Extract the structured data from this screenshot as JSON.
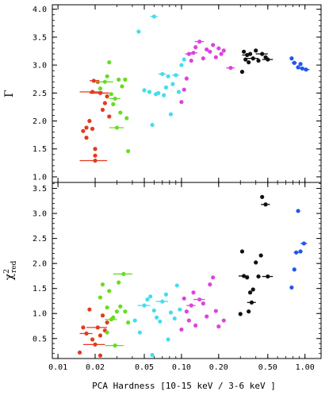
{
  "chart_data": [
    {
      "type": "scatter",
      "panel": "top",
      "ylabel": "Γ",
      "xlabel": "",
      "xscale": "log",
      "xlim": [
        0.009,
        1.35
      ],
      "ylim": [
        0.9,
        4.08
      ],
      "yticks": [
        1.0,
        1.5,
        2.0,
        2.5,
        3.0,
        3.5,
        4.0
      ],
      "ytick_labels": [
        "1.0",
        "1.5",
        "2.0",
        "2.5",
        "3.0",
        "3.5",
        "4.0"
      ],
      "grid": false,
      "series": [
        {
          "color": "#e03c1e",
          "points": [
            {
              "x": 0.016,
              "y": 1.82
            },
            {
              "x": 0.017,
              "y": 1.88
            },
            {
              "x": 0.017,
              "y": 1.7
            },
            {
              "x": 0.018,
              "y": 2.0
            },
            {
              "x": 0.019,
              "y": 1.86
            },
            {
              "x": 0.0195,
              "y": 2.72,
              "xerr": 0.0015
            },
            {
              "x": 0.019,
              "y": 2.52,
              "xerr": 0.004
            },
            {
              "x": 0.02,
              "y": 1.5
            },
            {
              "x": 0.02,
              "y": 1.38
            },
            {
              "x": 0.02,
              "y": 1.29,
              "xerr": 0.005
            },
            {
              "x": 0.021,
              "y": 2.7
            },
            {
              "x": 0.022,
              "y": 2.5,
              "xerr": 0.004
            },
            {
              "x": 0.023,
              "y": 2.2
            },
            {
              "x": 0.024,
              "y": 2.32
            },
            {
              "x": 0.025,
              "y": 2.44
            },
            {
              "x": 0.026,
              "y": 2.08
            }
          ]
        },
        {
          "color": "#66dd22",
          "points": [
            {
              "x": 0.022,
              "y": 2.58
            },
            {
              "x": 0.024,
              "y": 2.7,
              "xerr": 0.004
            },
            {
              "x": 0.025,
              "y": 2.8
            },
            {
              "x": 0.026,
              "y": 3.05
            },
            {
              "x": 0.027,
              "y": 2.48
            },
            {
              "x": 0.028,
              "y": 2.3
            },
            {
              "x": 0.029,
              "y": 2.4,
              "xerr": 0.003
            },
            {
              "x": 0.03,
              "y": 1.88,
              "xerr": 0.004
            },
            {
              "x": 0.031,
              "y": 2.74
            },
            {
              "x": 0.032,
              "y": 2.15
            },
            {
              "x": 0.033,
              "y": 2.62
            },
            {
              "x": 0.035,
              "y": 2.74
            },
            {
              "x": 0.036,
              "y": 2.05
            },
            {
              "x": 0.037,
              "y": 1.46
            }
          ]
        },
        {
          "color": "#44ddee",
          "points": [
            {
              "x": 0.045,
              "y": 3.6
            },
            {
              "x": 0.05,
              "y": 2.55
            },
            {
              "x": 0.055,
              "y": 2.52
            },
            {
              "x": 0.058,
              "y": 1.93
            },
            {
              "x": 0.06,
              "y": 3.87,
              "xerr": 0.004
            },
            {
              "x": 0.062,
              "y": 2.48
            },
            {
              "x": 0.065,
              "y": 2.5
            },
            {
              "x": 0.07,
              "y": 2.84,
              "xerr": 0.005
            },
            {
              "x": 0.072,
              "y": 2.46
            },
            {
              "x": 0.075,
              "y": 2.6
            },
            {
              "x": 0.078,
              "y": 2.8
            },
            {
              "x": 0.082,
              "y": 2.12
            },
            {
              "x": 0.085,
              "y": 2.66
            },
            {
              "x": 0.09,
              "y": 2.82,
              "xerr": 0.006
            },
            {
              "x": 0.095,
              "y": 2.52
            },
            {
              "x": 0.1,
              "y": 3.0
            },
            {
              "x": 0.105,
              "y": 3.1
            }
          ]
        },
        {
          "color": "#dd44dd",
          "points": [
            {
              "x": 0.1,
              "y": 2.34
            },
            {
              "x": 0.105,
              "y": 2.56
            },
            {
              "x": 0.11,
              "y": 2.76
            },
            {
              "x": 0.115,
              "y": 3.2,
              "xerr": 0.008
            },
            {
              "x": 0.12,
              "y": 3.08
            },
            {
              "x": 0.125,
              "y": 3.22,
              "xerr": 0.01
            },
            {
              "x": 0.13,
              "y": 3.32
            },
            {
              "x": 0.14,
              "y": 3.42,
              "xerr": 0.012
            },
            {
              "x": 0.15,
              "y": 3.12
            },
            {
              "x": 0.16,
              "y": 3.28
            },
            {
              "x": 0.17,
              "y": 3.24
            },
            {
              "x": 0.18,
              "y": 3.36
            },
            {
              "x": 0.19,
              "y": 3.14
            },
            {
              "x": 0.2,
              "y": 3.3
            },
            {
              "x": 0.21,
              "y": 3.2
            },
            {
              "x": 0.22,
              "y": 3.26
            },
            {
              "x": 0.25,
              "y": 2.95,
              "xerr": 0.02
            }
          ]
        },
        {
          "color": "#111111",
          "points": [
            {
              "x": 0.31,
              "y": 2.88
            },
            {
              "x": 0.32,
              "y": 3.24
            },
            {
              "x": 0.33,
              "y": 3.1
            },
            {
              "x": 0.34,
              "y": 3.18,
              "xerr": 0.03
            },
            {
              "x": 0.35,
              "y": 3.05
            },
            {
              "x": 0.36,
              "y": 3.2
            },
            {
              "x": 0.38,
              "y": 3.12,
              "xerr": 0.04
            },
            {
              "x": 0.4,
              "y": 3.26
            },
            {
              "x": 0.42,
              "y": 3.08
            },
            {
              "x": 0.45,
              "y": 3.2,
              "xerr": 0.05
            },
            {
              "x": 0.48,
              "y": 3.14
            },
            {
              "x": 0.5,
              "y": 3.1,
              "xerr": 0.05
            }
          ]
        },
        {
          "color": "#2255ee",
          "points": [
            {
              "x": 0.78,
              "y": 3.12
            },
            {
              "x": 0.82,
              "y": 3.04,
              "xerr": 0.04
            },
            {
              "x": 0.88,
              "y": 2.96
            },
            {
              "x": 0.92,
              "y": 3.02
            },
            {
              "x": 0.95,
              "y": 2.94,
              "xerr": 0.06
            },
            {
              "x": 1.02,
              "y": 2.92,
              "xerr": 0.07
            }
          ]
        }
      ]
    },
    {
      "type": "scatter",
      "panel": "bottom",
      "ylabel": "χ²red",
      "xlabel": "PCA Hardness [10-15 keV / 3-6 keV ]",
      "xscale": "log",
      "xlim": [
        0.009,
        1.35
      ],
      "ylim": [
        0.1,
        3.62
      ],
      "xticks": [
        0.01,
        0.02,
        0.05,
        0.1,
        0.2,
        0.5,
        1.0
      ],
      "xtick_labels": [
        "0.01",
        "0.02",
        "0.05",
        "0.10",
        "0.20",
        "0.50",
        "1.00"
      ],
      "yticks": [
        0.5,
        1.0,
        1.5,
        2.0,
        2.5,
        3.0,
        3.5
      ],
      "ytick_labels": [
        "0.5",
        "1.0",
        "1.5",
        "2.0",
        "2.5",
        "3.0",
        "3.5"
      ],
      "grid": false,
      "series": [
        {
          "color": "#e03c1e",
          "points": [
            {
              "x": 0.015,
              "y": 0.22
            },
            {
              "x": 0.016,
              "y": 0.72
            },
            {
              "x": 0.017,
              "y": 0.6,
              "xerr": 0.002
            },
            {
              "x": 0.018,
              "y": 1.08
            },
            {
              "x": 0.019,
              "y": 0.48
            },
            {
              "x": 0.02,
              "y": 0.38,
              "xerr": 0.004
            },
            {
              "x": 0.021,
              "y": 0.72,
              "xerr": 0.004
            },
            {
              "x": 0.022,
              "y": 0.56
            },
            {
              "x": 0.023,
              "y": 0.96
            },
            {
              "x": 0.024,
              "y": 0.66
            },
            {
              "x": 0.025,
              "y": 0.82
            },
            {
              "x": 0.022,
              "y": 0.16
            }
          ]
        },
        {
          "color": "#66dd22",
          "points": [
            {
              "x": 0.022,
              "y": 1.32
            },
            {
              "x": 0.023,
              "y": 1.58
            },
            {
              "x": 0.025,
              "y": 1.12
            },
            {
              "x": 0.026,
              "y": 1.45
            },
            {
              "x": 0.027,
              "y": 0.88,
              "xerr": 0.003
            },
            {
              "x": 0.028,
              "y": 0.92
            },
            {
              "x": 0.03,
              "y": 1.04
            },
            {
              "x": 0.031,
              "y": 1.62
            },
            {
              "x": 0.032,
              "y": 1.14
            },
            {
              "x": 0.034,
              "y": 1.79,
              "xerr": 0.006
            },
            {
              "x": 0.035,
              "y": 1.04
            },
            {
              "x": 0.037,
              "y": 0.82
            },
            {
              "x": 0.025,
              "y": 0.62
            },
            {
              "x": 0.029,
              "y": 0.36,
              "xerr": 0.005
            }
          ]
        },
        {
          "color": "#44ddee",
          "points": [
            {
              "x": 0.042,
              "y": 0.86
            },
            {
              "x": 0.046,
              "y": 0.62
            },
            {
              "x": 0.05,
              "y": 1.16,
              "xerr": 0.006
            },
            {
              "x": 0.053,
              "y": 1.28
            },
            {
              "x": 0.056,
              "y": 1.34
            },
            {
              "x": 0.058,
              "y": 0.17
            },
            {
              "x": 0.06,
              "y": 1.06
            },
            {
              "x": 0.063,
              "y": 0.92
            },
            {
              "x": 0.067,
              "y": 0.84
            },
            {
              "x": 0.07,
              "y": 1.24,
              "xerr": 0.008
            },
            {
              "x": 0.075,
              "y": 1.38
            },
            {
              "x": 0.078,
              "y": 0.48
            },
            {
              "x": 0.082,
              "y": 1.02
            },
            {
              "x": 0.088,
              "y": 0.9
            },
            {
              "x": 0.092,
              "y": 1.56
            },
            {
              "x": 0.097,
              "y": 1.08
            }
          ]
        },
        {
          "color": "#dd44dd",
          "points": [
            {
              "x": 0.1,
              "y": 0.68
            },
            {
              "x": 0.105,
              "y": 1.3
            },
            {
              "x": 0.11,
              "y": 1.04
            },
            {
              "x": 0.115,
              "y": 0.86
            },
            {
              "x": 0.12,
              "y": 1.16,
              "xerr": 0.01
            },
            {
              "x": 0.125,
              "y": 1.42
            },
            {
              "x": 0.13,
              "y": 0.76
            },
            {
              "x": 0.14,
              "y": 1.28,
              "xerr": 0.015
            },
            {
              "x": 0.15,
              "y": 1.2
            },
            {
              "x": 0.16,
              "y": 0.94
            },
            {
              "x": 0.17,
              "y": 1.58
            },
            {
              "x": 0.18,
              "y": 1.72
            },
            {
              "x": 0.19,
              "y": 1.05
            },
            {
              "x": 0.2,
              "y": 0.74
            },
            {
              "x": 0.22,
              "y": 0.86
            }
          ]
        },
        {
          "color": "#111111",
          "points": [
            {
              "x": 0.3,
              "y": 0.99
            },
            {
              "x": 0.31,
              "y": 2.24
            },
            {
              "x": 0.32,
              "y": 1.75,
              "xerr": 0.03
            },
            {
              "x": 0.34,
              "y": 1.72
            },
            {
              "x": 0.35,
              "y": 1.04
            },
            {
              "x": 0.36,
              "y": 1.42
            },
            {
              "x": 0.37,
              "y": 1.22,
              "xerr": 0.03
            },
            {
              "x": 0.38,
              "y": 1.48
            },
            {
              "x": 0.4,
              "y": 2.02
            },
            {
              "x": 0.42,
              "y": 1.74
            },
            {
              "x": 0.44,
              "y": 2.16
            },
            {
              "x": 0.45,
              "y": 3.33
            },
            {
              "x": 0.48,
              "y": 3.18,
              "xerr": 0.04
            },
            {
              "x": 0.5,
              "y": 1.74,
              "xerr": 0.05
            }
          ]
        },
        {
          "color": "#2255ee",
          "points": [
            {
              "x": 0.78,
              "y": 1.52
            },
            {
              "x": 0.82,
              "y": 1.88
            },
            {
              "x": 0.85,
              "y": 2.22,
              "xerr": 0.04
            },
            {
              "x": 0.88,
              "y": 3.05
            },
            {
              "x": 0.92,
              "y": 2.24
            },
            {
              "x": 0.98,
              "y": 2.4,
              "xerr": 0.06
            }
          ]
        }
      ]
    }
  ]
}
